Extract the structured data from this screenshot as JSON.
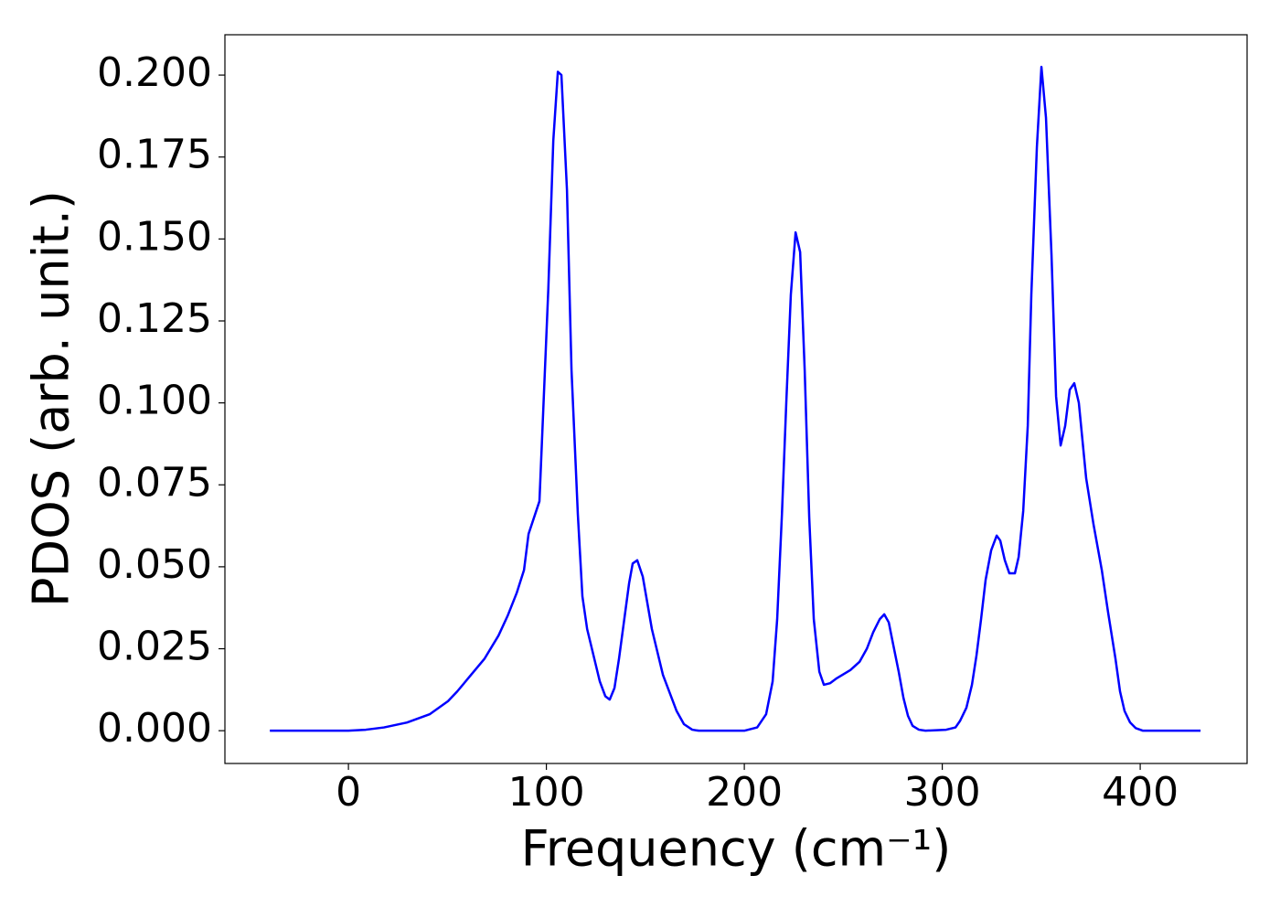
{
  "chart_data": {
    "type": "line",
    "xlabel": "Frequency (cm⁻¹)",
    "ylabel": "PDOS (arb. unit.)",
    "xlim": [
      -62.4,
      454
    ],
    "ylim": [
      -0.01,
      0.2123
    ],
    "xticks": [
      0,
      100,
      200,
      300,
      400
    ],
    "yticks": [
      {
        "value": 0,
        "label": "0.000"
      },
      {
        "value": 0.025,
        "label": "0.025"
      },
      {
        "value": 0.05,
        "label": "0.050"
      },
      {
        "value": 0.075,
        "label": "0.075"
      },
      {
        "value": 0.1,
        "label": "0.100"
      },
      {
        "value": 0.125,
        "label": "0.125"
      },
      {
        "value": 0.15,
        "label": "0.150"
      },
      {
        "value": 0.175,
        "label": "0.175"
      },
      {
        "value": 0.2,
        "label": "0.200"
      }
    ],
    "color": "#0000ff",
    "x": [
      -39.7,
      -20,
      0,
      8.8,
      18,
      29.6,
      41,
      50.3,
      55,
      61.9,
      68.8,
      75.8,
      80.4,
      85,
      88.7,
      91,
      96.5,
      101,
      103.5,
      105.8,
      107.6,
      110.4,
      112.7,
      115.9,
      118.2,
      120.6,
      127,
      129.8,
      132,
      134.4,
      136.7,
      141.8,
      143.6,
      145.9,
      148.7,
      153.3,
      158.9,
      165.8,
      169.5,
      173.7,
      177,
      200,
      206.5,
      211,
      214.3,
      216.6,
      219,
      221.2,
      223.5,
      225.9,
      228.2,
      230.5,
      232.8,
      235.1,
      237.9,
      240.2,
      243.4,
      246.7,
      253.6,
      258.2,
      261.9,
      265.1,
      268.4,
      270.7,
      273,
      275.3,
      278,
      280.4,
      282.7,
      285,
      288.2,
      291.5,
      302,
      306.7,
      309,
      312.2,
      315,
      317.3,
      319.6,
      321.9,
      324.7,
      327.5,
      329.3,
      331.6,
      333.9,
      336.7,
      338.6,
      340.9,
      343.2,
      345,
      347.8,
      350.1,
      352.4,
      355.2,
      357.5,
      359.8,
      362.1,
      364.4,
      366.7,
      369,
      372.7,
      376.4,
      380.6,
      383.8,
      387.5,
      389.8,
      392.1,
      394.9,
      397.7,
      401.4,
      430.5
    ],
    "values": [
      0,
      0,
      0,
      0.0003,
      0.001,
      0.0025,
      0.005,
      0.009,
      0.012,
      0.017,
      0.022,
      0.029,
      0.035,
      0.042,
      0.049,
      0.06,
      0.07,
      0.135,
      0.18,
      0.201,
      0.2,
      0.165,
      0.11,
      0.066,
      0.041,
      0.031,
      0.015,
      0.0105,
      0.0095,
      0.013,
      0.022,
      0.045,
      0.051,
      0.052,
      0.047,
      0.031,
      0.017,
      0.006,
      0.002,
      0.0003,
      0,
      0,
      0.001,
      0.005,
      0.015,
      0.034,
      0.066,
      0.1,
      0.133,
      0.152,
      0.146,
      0.11,
      0.065,
      0.034,
      0.018,
      0.014,
      0.0145,
      0.016,
      0.0185,
      0.021,
      0.025,
      0.03,
      0.034,
      0.0355,
      0.033,
      0.026,
      0.018,
      0.01,
      0.0045,
      0.0015,
      0.0003,
      0,
      0.0003,
      0.001,
      0.003,
      0.007,
      0.014,
      0.023,
      0.034,
      0.046,
      0.055,
      0.0595,
      0.058,
      0.052,
      0.048,
      0.048,
      0.053,
      0.067,
      0.093,
      0.133,
      0.178,
      0.2025,
      0.187,
      0.145,
      0.102,
      0.087,
      0.093,
      0.104,
      0.106,
      0.1,
      0.077,
      0.063,
      0.049,
      0.036,
      0.022,
      0.012,
      0.006,
      0.0025,
      0.0008,
      0,
      0
    ]
  }
}
